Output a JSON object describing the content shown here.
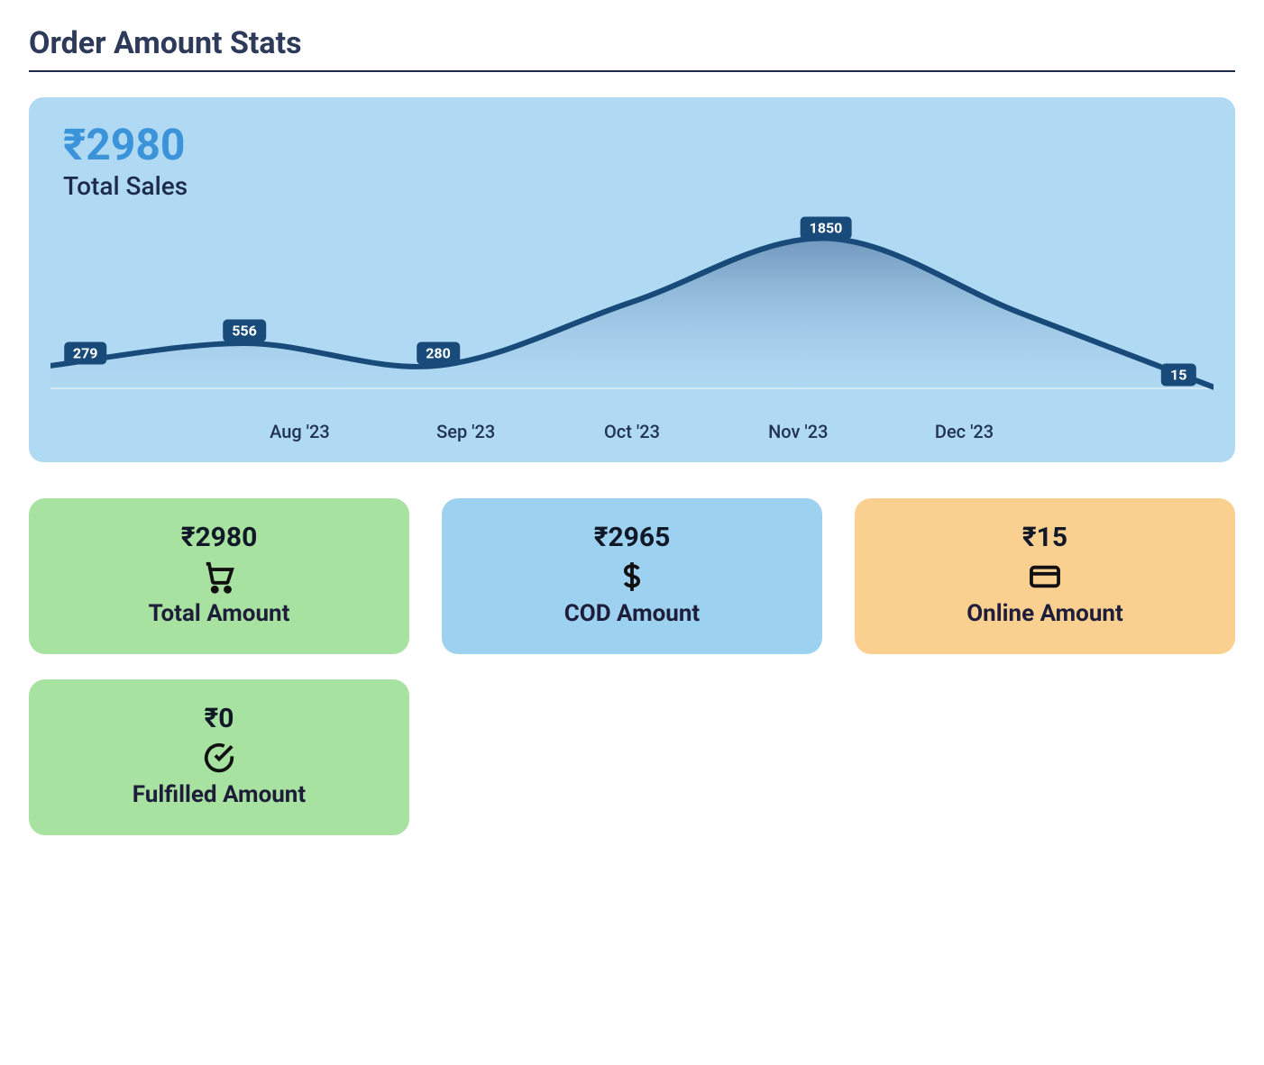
{
  "page": {
    "title": "Order Amount Stats"
  },
  "chart": {
    "type": "area",
    "background_color": "#b0d9f4",
    "total_display": "₹2980",
    "total_color": "#3b94d9",
    "subtitle": "Total Sales",
    "subtitle_color": "#1e2a4a",
    "line_color": "#184b7a",
    "line_width": 6,
    "fill_top_color": "#5b82ab",
    "fill_bottom_color": "#9fc6e4",
    "baseline_color": "#d6e9f6",
    "label_bg": "#184b7a",
    "label_text_color": "#ffffff",
    "ylim": [
      0,
      2000
    ],
    "points": [
      {
        "x_label": "",
        "value": 279,
        "label": "279"
      },
      {
        "x_label": "Aug '23",
        "value": 556,
        "label": "556"
      },
      {
        "x_label": "Sep '23",
        "value": 280,
        "label": "280"
      },
      {
        "x_label": "Oct '23",
        "value": null,
        "label": null
      },
      {
        "x_label": "Nov '23",
        "value": 1850,
        "label": "1850"
      },
      {
        "x_label": "Dec '23",
        "value": null,
        "label": null
      },
      {
        "x_label": "",
        "value": 15,
        "label": "15"
      }
    ],
    "x_axis_labels": [
      "Aug '23",
      "Sep '23",
      "Oct '23",
      "Nov '23",
      "Dec '23"
    ]
  },
  "cards": [
    {
      "value": "₹2980",
      "label": "Total Amount",
      "icon": "cart-icon",
      "bg": "#a8e2a0"
    },
    {
      "value": "₹2965",
      "label": "COD Amount",
      "icon": "dollar-icon",
      "bg": "#9dd1f0"
    },
    {
      "value": "₹15",
      "label": "Online Amount",
      "icon": "card-icon",
      "bg": "#f9d08f"
    },
    {
      "value": "₹0",
      "label": "Fulfilled Amount",
      "icon": "check-icon",
      "bg": "#a8e2a0"
    }
  ],
  "colors": {
    "page_bg": "#ffffff",
    "title_color": "#2d3a5a",
    "title_underline": "#1e2a4a",
    "card_text": "#1e1e3a"
  }
}
